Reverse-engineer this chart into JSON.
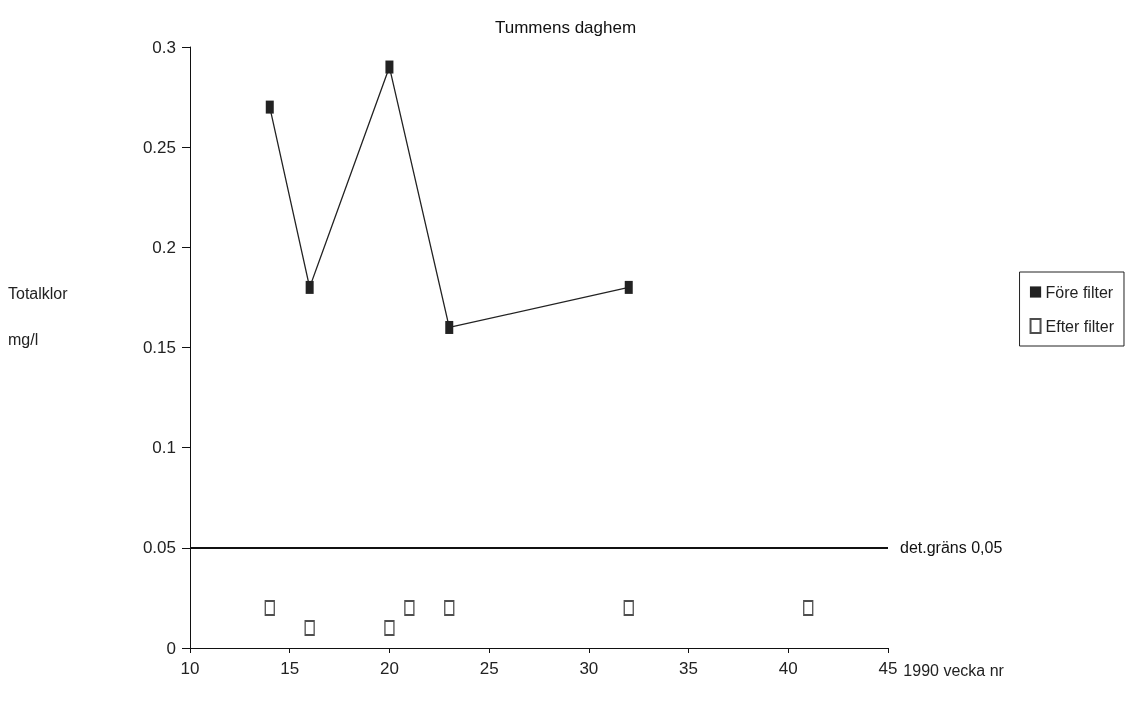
{
  "chart_data": {
    "type": "line",
    "title": "Tummens daghem",
    "xlabel": "1990 vecka nr",
    "ylabel": "Totalklor\nmg/l",
    "xlim": [
      10,
      45
    ],
    "xticks": [
      10,
      15,
      20,
      25,
      30,
      35,
      40,
      45
    ],
    "ylim": [
      0,
      0.3
    ],
    "yticks": [
      0,
      0.05,
      0.1,
      0.15,
      0.2,
      0.25,
      0.3
    ],
    "grid": false,
    "legend": "right",
    "marker": "square",
    "series": [
      {
        "name": "Före filter",
        "color": "#222222",
        "x": [
          14,
          16,
          20,
          23,
          32
        ],
        "values": [
          0.27,
          0.18,
          0.29,
          0.16,
          0.18
        ]
      },
      {
        "name": "Efter filter",
        "type": "scatter",
        "color": "#222222",
        "x": [
          14,
          16,
          20,
          21,
          23,
          32,
          41
        ],
        "values": [
          0.02,
          0.01,
          0.01,
          0.02,
          0.02,
          0.02,
          0.02
        ]
      }
    ],
    "ref_lines": [
      {
        "axis": "y",
        "value": 0.05,
        "label": "det.gräns 0,05",
        "color": "#111111",
        "line_style": "solid"
      }
    ]
  }
}
